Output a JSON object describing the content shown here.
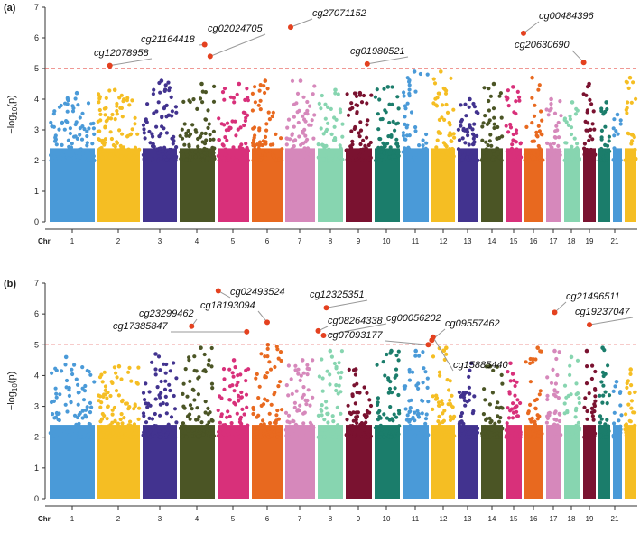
{
  "chart_data": [
    {
      "type": "scatter",
      "subtype": "manhattan",
      "panel_label": "(a)",
      "ylabel": "−log10(p)",
      "ylabel_main": "−log",
      "ylabel_sub": "10",
      "ylabel_paren": "(p)",
      "xlabel": "Chr",
      "ylim": [
        0,
        7
      ],
      "yticks": [
        0,
        1,
        2,
        3,
        4,
        5,
        6,
        7
      ],
      "threshold": 5.0,
      "chromosome_labels": [
        "1",
        "2",
        "3",
        "4",
        "5",
        "6",
        "7",
        "8",
        "9",
        "10",
        "11",
        "12",
        "13",
        "14",
        "15",
        "16",
        "17",
        "18",
        "19",
        "21"
      ],
      "chromosomes": [
        {
          "chr": "1",
          "color": "#4A9AD8",
          "peak": 4.2
        },
        {
          "chr": "2",
          "color": "#F5BE23",
          "peak": 4.3
        },
        {
          "chr": "3",
          "color": "#42338F",
          "peak": 4.6
        },
        {
          "chr": "4",
          "color": "#4B5525",
          "peak": 4.5
        },
        {
          "chr": "5",
          "color": "#D8307A",
          "peak": 4.5
        },
        {
          "chr": "6",
          "color": "#E8691F",
          "peak": 4.6
        },
        {
          "chr": "7",
          "color": "#D688BB",
          "peak": 4.6
        },
        {
          "chr": "8",
          "color": "#87D5B0",
          "peak": 4.3
        },
        {
          "chr": "9",
          "color": "#7A1230",
          "peak": 4.2
        },
        {
          "chr": "10",
          "color": "#1B7D6B",
          "peak": 4.4
        },
        {
          "chr": "11",
          "color": "#4A9AD8",
          "peak": 4.9
        },
        {
          "chr": "12",
          "color": "#F5BE23",
          "peak": 4.9
        },
        {
          "chr": "13",
          "color": "#42338F",
          "peak": 4.0
        },
        {
          "chr": "14",
          "color": "#4B5525",
          "peak": 4.5
        },
        {
          "chr": "15",
          "color": "#D8307A",
          "peak": 4.4
        },
        {
          "chr": "16",
          "color": "#E8691F",
          "peak": 4.7
        },
        {
          "chr": "17",
          "color": "#D688BB",
          "peak": 4.0
        },
        {
          "chr": "18",
          "color": "#87D5B0",
          "peak": 3.9
        },
        {
          "chr": "19",
          "color": "#7A1230",
          "peak": 4.5
        },
        {
          "chr": "20",
          "color": "#1B7D6B",
          "peak": 3.9
        },
        {
          "chr": "21",
          "color": "#4A9AD8",
          "peak": 3.5
        },
        {
          "chr": "22",
          "color": "#F5BE23",
          "peak": 4.7
        }
      ],
      "significant_points": [
        {
          "label": "cg12078958",
          "chr": "2",
          "pos": 0.3,
          "value": 5.1
        },
        {
          "label": "cg21164418",
          "chr": "4",
          "pos": 0.7,
          "value": 5.78
        },
        {
          "label": "cg02024705",
          "chr": "4",
          "pos": 0.85,
          "value": 5.4
        },
        {
          "label": "cg27071152",
          "chr": "7",
          "pos": 0.2,
          "value": 6.35
        },
        {
          "label": "cg01980521",
          "chr": "9",
          "pos": 0.8,
          "value": 5.15
        },
        {
          "label": "cg00484396",
          "chr": "16",
          "pos": 0.0,
          "value": 6.15
        },
        {
          "label": "cg20630690",
          "chr": "19",
          "pos": 0.1,
          "value": 5.2
        }
      ]
    },
    {
      "type": "scatter",
      "subtype": "manhattan",
      "panel_label": "(b)",
      "ylabel": "−log10(p)",
      "ylabel_main": "−log",
      "ylabel_sub": "10",
      "ylabel_paren": "(p)",
      "xlabel": "Chr",
      "ylim": [
        0,
        7
      ],
      "yticks": [
        0,
        1,
        2,
        3,
        4,
        5,
        6,
        7
      ],
      "threshold": 5.0,
      "chromosome_labels": [
        "1",
        "2",
        "3",
        "4",
        "5",
        "6",
        "7",
        "8",
        "9",
        "10",
        "11",
        "12",
        "13",
        "14",
        "15",
        "16",
        "17",
        "18",
        "19",
        "21"
      ],
      "chromosomes": [
        {
          "chr": "1",
          "color": "#4A9AD8",
          "peak": 4.6
        },
        {
          "chr": "2",
          "color": "#F5BE23",
          "peak": 4.3
        },
        {
          "chr": "3",
          "color": "#42338F",
          "peak": 4.7
        },
        {
          "chr": "4",
          "color": "#4B5525",
          "peak": 4.9
        },
        {
          "chr": "5",
          "color": "#D8307A",
          "peak": 4.5
        },
        {
          "chr": "6",
          "color": "#E8691F",
          "peak": 5.0
        },
        {
          "chr": "7",
          "color": "#D688BB",
          "peak": 4.5
        },
        {
          "chr": "8",
          "color": "#87D5B0",
          "peak": 4.8
        },
        {
          "chr": "9",
          "color": "#7A1230",
          "peak": 4.2
        },
        {
          "chr": "10",
          "color": "#1B7D6B",
          "peak": 4.8
        },
        {
          "chr": "11",
          "color": "#4A9AD8",
          "peak": 4.8
        },
        {
          "chr": "12",
          "color": "#F5BE23",
          "peak": 4.9
        },
        {
          "chr": "13",
          "color": "#42338F",
          "peak": 4.4
        },
        {
          "chr": "14",
          "color": "#4B5525",
          "peak": 4.3
        },
        {
          "chr": "15",
          "color": "#D8307A",
          "peak": 4.4
        },
        {
          "chr": "16",
          "color": "#E8691F",
          "peak": 4.9
        },
        {
          "chr": "17",
          "color": "#D688BB",
          "peak": 4.8
        },
        {
          "chr": "18",
          "color": "#87D5B0",
          "peak": 4.6
        },
        {
          "chr": "19",
          "color": "#7A1230",
          "peak": 4.8
        },
        {
          "chr": "20",
          "color": "#1B7D6B",
          "peak": 4.9
        },
        {
          "chr": "21",
          "color": "#4A9AD8",
          "peak": 3.8
        },
        {
          "chr": "22",
          "color": "#F5BE23",
          "peak": 4.2
        }
      ],
      "significant_points": [
        {
          "label": "cg02493524",
          "chr": "5",
          "pos": 0.05,
          "value": 6.75
        },
        {
          "label": "cg23299462",
          "chr": "4",
          "pos": 0.35,
          "value": 5.6
        },
        {
          "label": "cg18193094",
          "chr": "6",
          "pos": 0.5,
          "value": 5.73
        },
        {
          "label": "cg17385847",
          "chr": "5",
          "pos": 0.9,
          "value": 5.42
        },
        {
          "label": "cg12325351",
          "chr": "8",
          "pos": 0.35,
          "value": 6.2
        },
        {
          "label": "cg08264338",
          "chr": "8",
          "pos": 0.05,
          "value": 5.45
        },
        {
          "label": "cg00056202",
          "chr": "8",
          "pos": 0.25,
          "value": 5.3
        },
        {
          "label": "cg07093177",
          "chr": "11",
          "pos": 0.95,
          "value": 5.0
        },
        {
          "label": "cg09557462",
          "chr": "12",
          "pos": 0.05,
          "value": 5.15
        },
        {
          "label": "cg15885440",
          "chr": "12",
          "pos": 0.1,
          "value": 5.25
        },
        {
          "label": "cg21496511",
          "chr": "17",
          "pos": 0.55,
          "value": 6.05
        },
        {
          "label": "cg19237047",
          "chr": "19",
          "pos": 0.5,
          "value": 5.65
        }
      ]
    }
  ]
}
